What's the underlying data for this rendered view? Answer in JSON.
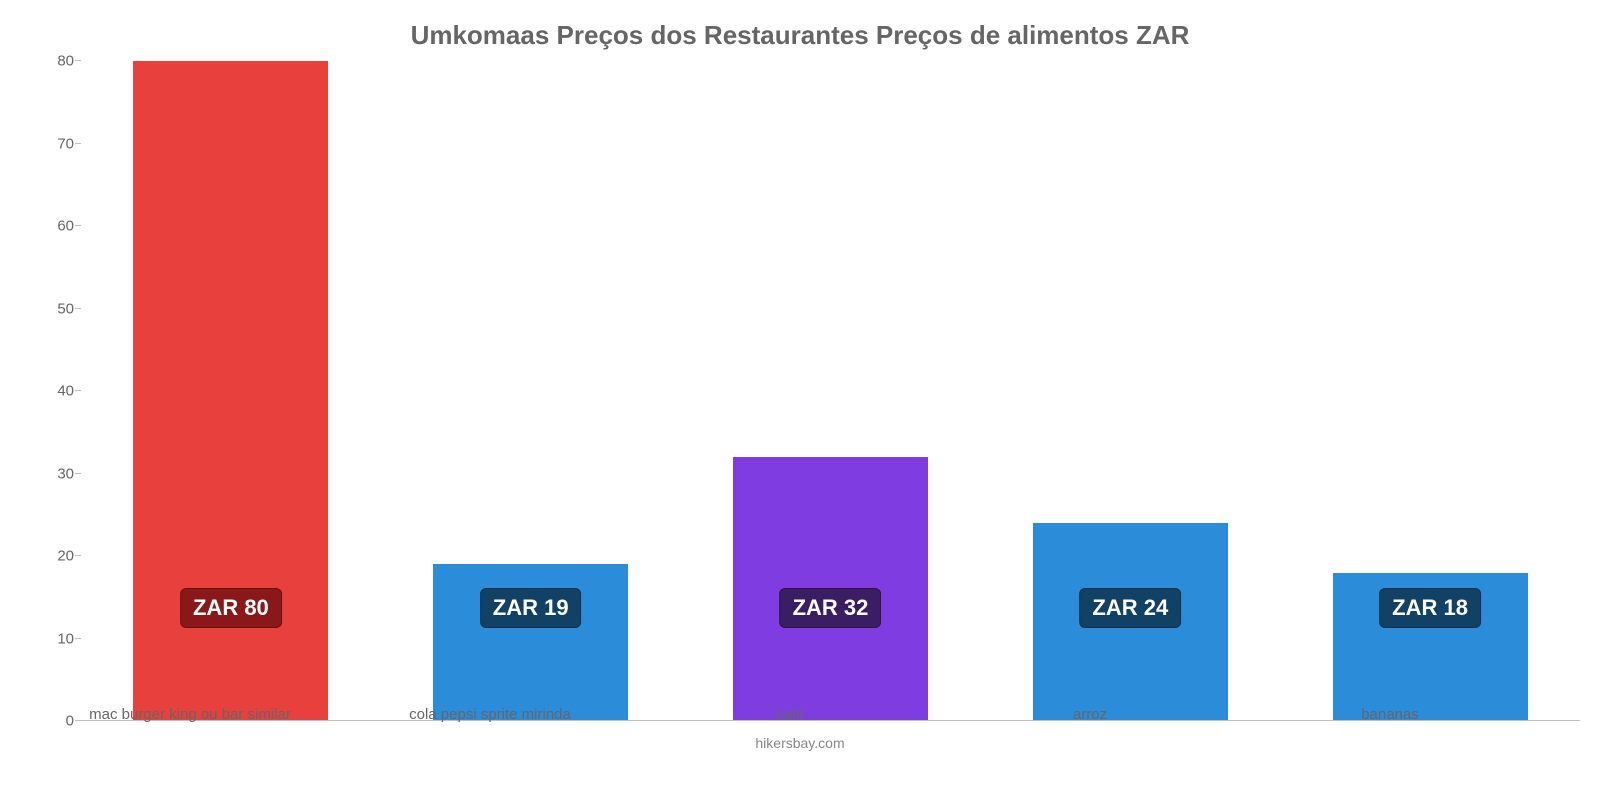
{
  "chart": {
    "type": "bar",
    "title": "Umkomaas Preços dos Restaurantes Preços de alimentos ZAR",
    "title_fontsize": 26,
    "title_color": "#666666",
    "attribution": "hikersbay.com",
    "attribution_fontsize": 14,
    "attribution_color": "#888888",
    "background_color": "#ffffff",
    "axis_color": "#c0c0c0",
    "tick_label_color": "#666666",
    "tick_label_fontsize": 15,
    "xlabel_fontsize": 15,
    "ylim": [
      0,
      80
    ],
    "ytick_step": 10,
    "yticks": [
      0,
      10,
      20,
      30,
      40,
      50,
      60,
      70,
      80
    ],
    "bar_width_pct": 65,
    "categories": [
      "mac burger king ou bar similar",
      "cola pepsi sprite mirinda",
      "café",
      "arroz",
      "bananas"
    ],
    "values": [
      80,
      19,
      32,
      24,
      18
    ],
    "bar_colors": [
      "#e8403c",
      "#2b8cda",
      "#7f3ce0",
      "#2b8cda",
      "#2b8cda"
    ],
    "badge_labels": [
      "ZAR 80",
      "ZAR 19",
      "ZAR 32",
      "ZAR 24",
      "ZAR 18"
    ],
    "badge_bg_colors": [
      "#8a1818",
      "#124166",
      "#3a1d63",
      "#124166",
      "#124166"
    ],
    "badge_text_color": "#ffffff",
    "badge_fontsize": 22,
    "badge_center_value": 14
  }
}
